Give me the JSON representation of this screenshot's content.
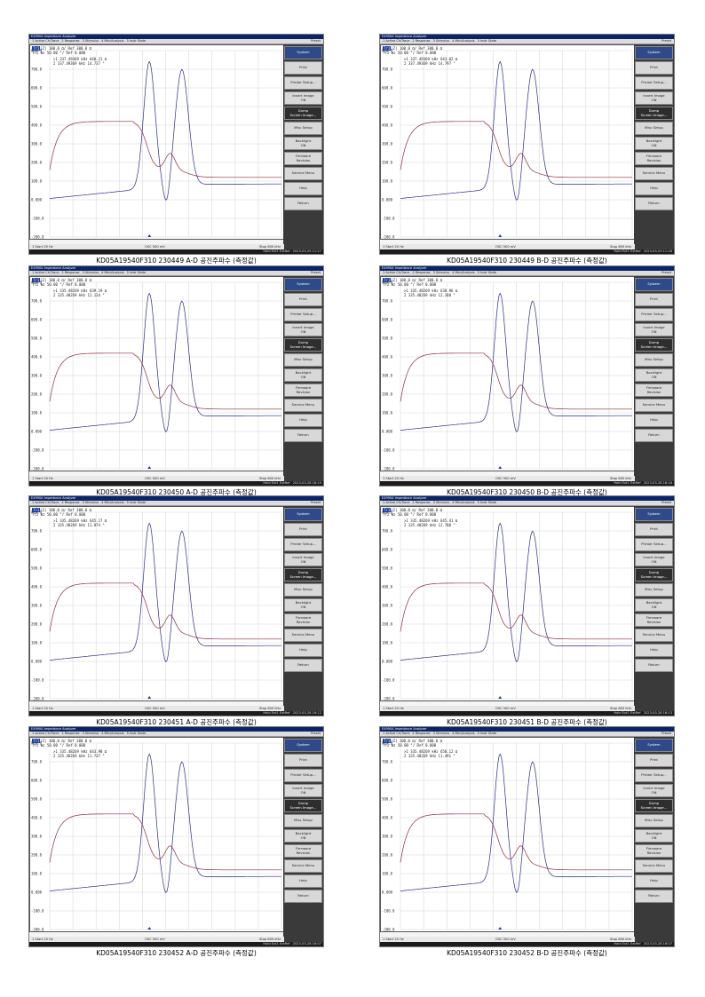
{
  "window": {
    "title": "E4990A Impedance Analyzer",
    "menu": [
      "1 Active Ch/Trace",
      "2 Response",
      "3 Stimulus",
      "4 Mkr/Analysis",
      "5 Instr State"
    ],
    "preset": "Preset"
  },
  "trace_header": {
    "line1_tag": "Tr1",
    "line1": "|Z| 100.0 Ω/ Ref 300.0 Ω",
    "line2": "Tr2 θz 50.00 °/ Ref 0.000"
  },
  "softkeys": [
    {
      "label": "System",
      "sub": ""
    },
    {
      "label": "Print",
      "sub": ""
    },
    {
      "label": "Printer Setup...",
      "sub": ""
    },
    {
      "label": "Invert Image",
      "sub": "ON"
    },
    {
      "label": "Dump",
      "sub": "Screen Image..."
    },
    {
      "label": "Misc Setup",
      "sub": ""
    },
    {
      "label": "Backlight",
      "sub": "ON"
    },
    {
      "label": "Firmware",
      "sub": "Revision"
    },
    {
      "label": "Service Menu",
      "sub": ""
    },
    {
      "label": "Help",
      "sub": ""
    },
    {
      "label": "Return",
      "sub": ""
    }
  ],
  "status": {
    "start": "1 Start 20 Hz",
    "osc": "OSC 500 mV",
    "stop": "Stop 800 kHz",
    "bottom_prefix": "Hold  Ext1  ExtRef"
  },
  "y_ticks": [
    "800.0",
    "700.0",
    "600.0",
    "500.0",
    "400.0",
    "300.0",
    "200.0",
    "100.0",
    "0.000",
    "-100.0",
    "-200.0"
  ],
  "panels": [
    {
      "caption": "KD05A19540F310 230449 A-D 공진주파수 (측정값)",
      "m1": ">1  337.49369 kHz  648.21 Ω",
      "m2": " 2  337.49369 kHz  14.737 °",
      "time": "2023-03-29 11:27"
    },
    {
      "caption": "KD05A19540F310 230449 B-D 공진주파수 (측정값)",
      "m1": ">1  337.49369 kHz  643.02 Ω",
      "m2": " 2  337.49369 kHz  14.797 °",
      "time": "2023-03-29 11:28"
    },
    {
      "caption": "KD05A19540F310 230450 A-D 공진주파수 (측정값)",
      "m1": ">1  335.48269 kHz  639.19 Ω",
      "m2": " 2  335.48269 kHz  12.134 °",
      "time": "2023-03-28 16:15"
    },
    {
      "caption": "KD05A19540F310 230450 B-D 공진주파수 (측정값)",
      "m1": ">1  335.48269 kHz  638.96 Ω",
      "m2": " 2  335.48269 kHz  12.188 °",
      "time": "2023-03-28 16:16"
    },
    {
      "caption": "KD05A19540F310 230451 A-D 공진주파수 (측정값)",
      "m1": ">1  335.48269 kHz  645.17 Ω",
      "m2": " 2  335.48269 kHz  11.874 °",
      "time": "2023-03-28 16:12"
    },
    {
      "caption": "KD05A19540F310 230451 B-D 공진주파수 (측정값)",
      "m1": ">1  335.48269 kHz  645.41 Ω",
      "m2": " 2  335.48269 kHz  12.780 °",
      "time": "2023-03-28 16:13"
    },
    {
      "caption": "KD05A19540F310 230452 A-D 공진주파수 (측정값)",
      "m1": ">1  335.48269 kHz  643.98 Ω",
      "m2": " 2  335.48269 kHz  11.737 °",
      "time": "2023-03-28 16:07"
    },
    {
      "caption": "KD05A19540F310 230452 B-D 공진주파수 (측정값)",
      "m1": ">1  335.48269 kHz  650.12 Ω",
      "m2": " 2  335.48269 kHz  11.491 °",
      "time": "2023-03-28 16:07"
    }
  ],
  "colors": {
    "trace_impedance": "#2b2b8f",
    "trace_phase": "#8b2c3a",
    "softkey_highlight": "#2e2e2e"
  }
}
